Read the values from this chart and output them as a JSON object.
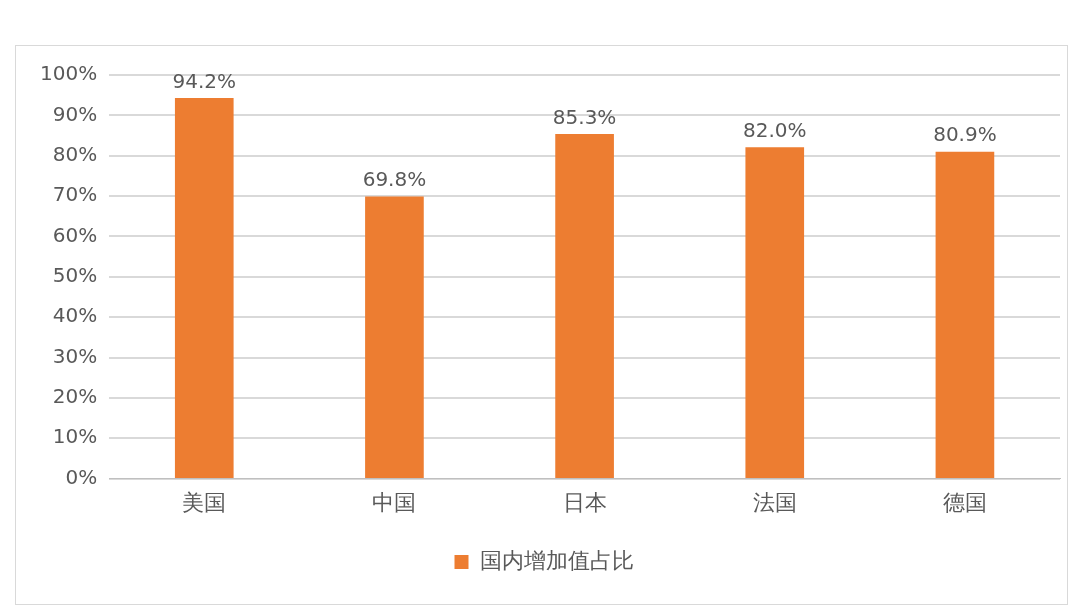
{
  "chart_data": {
    "type": "bar",
    "categories": [
      "美国",
      "中国",
      "日本",
      "法国",
      "德国"
    ],
    "series": [
      {
        "name": "国内增加值占比",
        "color": "#ed7d31",
        "values": [
          94.2,
          69.8,
          85.3,
          82.0,
          80.9
        ],
        "value_labels": [
          "94.2%",
          "69.8%",
          "85.3%",
          "82.0%",
          "80.9%"
        ]
      }
    ],
    "ylim": [
      0,
      100
    ],
    "yticks": [
      {
        "value": 0,
        "label": "0%"
      },
      {
        "value": 10,
        "label": "10%"
      },
      {
        "value": 20,
        "label": "20%"
      },
      {
        "value": 30,
        "label": "30%"
      },
      {
        "value": 40,
        "label": "40%"
      },
      {
        "value": 50,
        "label": "50%"
      },
      {
        "value": 60,
        "label": "60%"
      },
      {
        "value": 70,
        "label": "70%"
      },
      {
        "value": 80,
        "label": "80%"
      },
      {
        "value": 90,
        "label": "90%"
      },
      {
        "value": 100,
        "label": "100%"
      }
    ],
    "grid": "y",
    "legend": "bottom"
  }
}
